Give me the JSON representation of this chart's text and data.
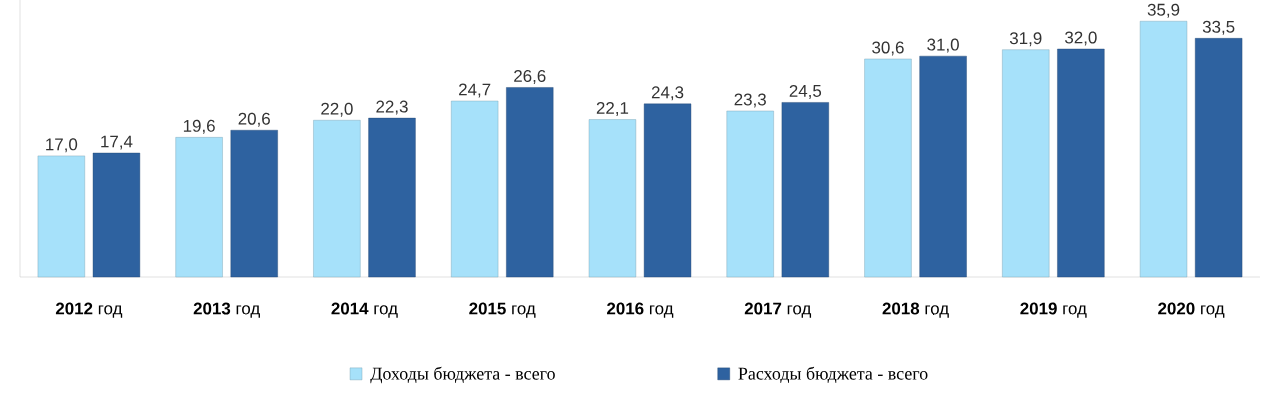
{
  "chart_data": {
    "type": "bar",
    "categories": [
      "**2012** год",
      "**2013** год",
      "**2014** год",
      "**2015** год",
      "**2016** год",
      "**2017** год",
      "**2018** год",
      "**2019** год",
      "**2020** год"
    ],
    "series": [
      {
        "name": "Доходы бюджета - всего",
        "color": "#a6e1fa",
        "values": [
          17.0,
          19.6,
          22.0,
          24.7,
          22.1,
          23.3,
          30.6,
          31.9,
          35.9
        ],
        "value_labels": [
          "17,0",
          "19,6",
          "22,0",
          "24,7",
          "22,1",
          "23,3",
          "30,6",
          "31,9",
          "35,9"
        ]
      },
      {
        "name": "Расходы бюджета - всего",
        "color": "#2e62a0",
        "values": [
          17.4,
          20.6,
          22.3,
          26.6,
          24.3,
          24.5,
          31.0,
          32.0,
          33.5
        ],
        "value_labels": [
          "17,4",
          "20,6",
          "22,3",
          "26,6",
          "24,3",
          "24,5",
          "31,0",
          "32,0",
          "33,5"
        ]
      }
    ],
    "ylim": [
      0,
      40
    ],
    "legend": "bottom"
  }
}
